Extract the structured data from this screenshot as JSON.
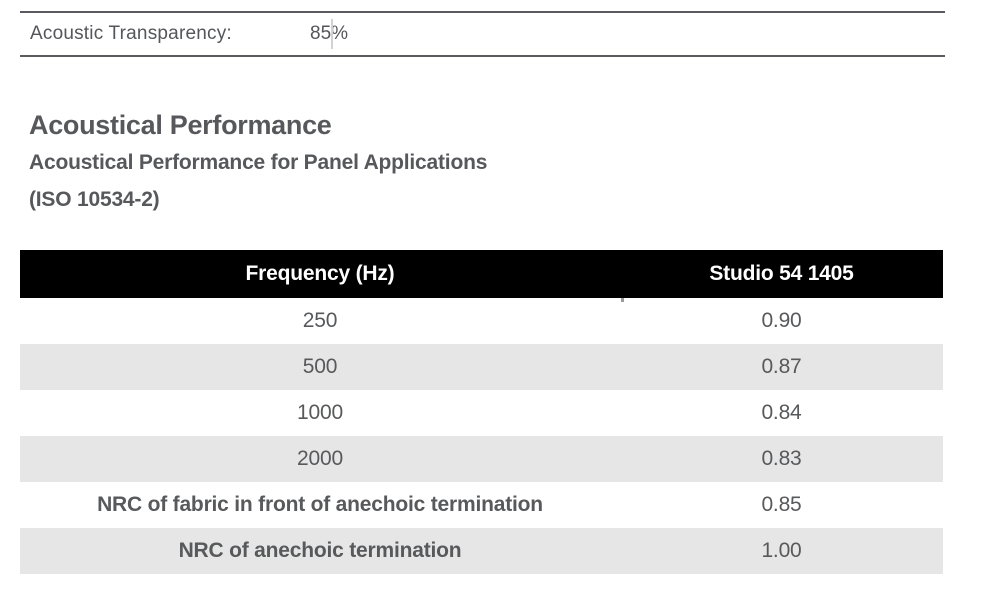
{
  "transparency": {
    "label": "Acoustic Transparency:",
    "value": "85%"
  },
  "heading": {
    "title": "Acoustical Performance",
    "subtitle": "Acoustical Performance for Panel Applications",
    "standard": "(ISO 10534-2)"
  },
  "table": {
    "columns": [
      "Frequency (Hz)",
      "Studio 54 1405"
    ],
    "rows": [
      {
        "label": "250",
        "value": "0.90"
      },
      {
        "label": "500",
        "value": "0.87"
      },
      {
        "label": "1000",
        "value": "0.84"
      },
      {
        "label": "2000",
        "value": "0.83"
      },
      {
        "label": "NRC of fabric in front of anechoic termination",
        "value": "0.85"
      },
      {
        "label": "NRC of anechoic termination",
        "value": "1.00"
      }
    ]
  },
  "colors": {
    "header_bg": "#000000",
    "header_text": "#ffffff",
    "body_text": "#58595b",
    "alt_row_bg": "#e6e6e6",
    "rule": "#5a5b5e",
    "divider": "#d2d2d2"
  }
}
